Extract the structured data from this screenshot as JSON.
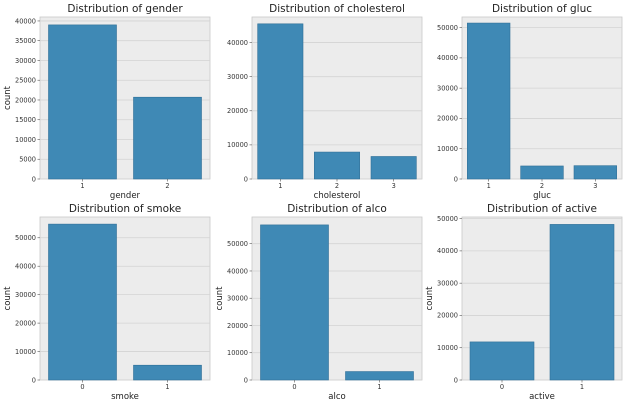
{
  "chart_data": [
    {
      "type": "bar",
      "title": "Distribution of gender",
      "categories": [
        "1",
        "2"
      ],
      "values": [
        39000,
        20700
      ],
      "xlabel": "gender",
      "ylabel": "count",
      "ylim": [
        0,
        41000
      ],
      "yticks": [
        0,
        5000,
        10000,
        15000,
        20000,
        25000,
        30000,
        35000,
        40000
      ],
      "grid": true
    },
    {
      "type": "bar",
      "title": "Distribution of cholesterol",
      "categories": [
        "1",
        "2",
        "3"
      ],
      "values": [
        45500,
        7900,
        6600
      ],
      "xlabel": "cholesterol",
      "ylabel": "",
      "ylim": [
        0,
        47500
      ],
      "yticks": [
        0,
        10000,
        20000,
        30000,
        40000
      ],
      "grid": true
    },
    {
      "type": "bar",
      "title": "Distribution of gluc",
      "categories": [
        "1",
        "2",
        "3"
      ],
      "values": [
        51500,
        4300,
        4400
      ],
      "xlabel": "gluc",
      "ylabel": "",
      "ylim": [
        0,
        53500
      ],
      "yticks": [
        0,
        10000,
        20000,
        30000,
        40000,
        50000
      ],
      "grid": true
    },
    {
      "type": "bar",
      "title": "Distribution of smoke",
      "categories": [
        "0",
        "1"
      ],
      "values": [
        54800,
        5200
      ],
      "xlabel": "smoke",
      "ylabel": "count",
      "ylim": [
        0,
        57300
      ],
      "yticks": [
        0,
        10000,
        20000,
        30000,
        40000,
        50000
      ],
      "grid": true
    },
    {
      "type": "bar",
      "title": "Distribution of alco",
      "categories": [
        "0",
        "1"
      ],
      "values": [
        56900,
        3100
      ],
      "xlabel": "alco",
      "ylabel": "count",
      "ylim": [
        0,
        59800
      ],
      "yticks": [
        0,
        10000,
        20000,
        30000,
        40000,
        50000
      ],
      "grid": true
    },
    {
      "type": "bar",
      "title": "Distribution of active",
      "categories": [
        "0",
        "1"
      ],
      "values": [
        11800,
        48200
      ],
      "xlabel": "active",
      "ylabel": "count",
      "ylim": [
        0,
        50500
      ],
      "yticks": [
        0,
        10000,
        20000,
        30000,
        40000,
        50000
      ],
      "grid": true
    }
  ],
  "colors": {
    "bar": "#3f89b5",
    "bar_edge": "#2f6f97",
    "panel_bg": "#ececec",
    "grid": "#d3d3d3",
    "frame": "#c9c9c9"
  }
}
